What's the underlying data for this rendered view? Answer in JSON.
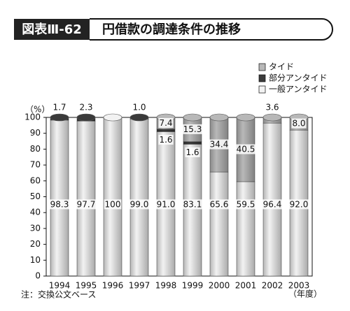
{
  "chart_data": {
    "type": "stacked-bar",
    "figure_number": "図表Ⅲ-62",
    "title": "円借款の調達条件の推移",
    "y_label": "（%）",
    "x_label": "（年度）",
    "note": "注：交換公文ベース",
    "categories": [
      "1994",
      "1995",
      "1996",
      "1997",
      "1998",
      "1999",
      "2000",
      "2001",
      "2002",
      "2003"
    ],
    "series": [
      {
        "name": "一般アンタイド",
        "color": "#f2f2f2",
        "values": [
          98.3,
          97.7,
          100,
          99.0,
          91.0,
          83.1,
          65.6,
          59.5,
          96.4,
          92.0
        ],
        "value_labels": [
          "98.3",
          "97.7",
          "100",
          "99.0",
          "91.0",
          "83.1",
          "65.6",
          "59.5",
          "96.4",
          "92.0"
        ]
      },
      {
        "name": "部分アンタイド",
        "color": "#3a3a3a",
        "values": [
          1.7,
          2.3,
          0,
          1.0,
          1.6,
          1.6,
          0,
          0,
          0,
          0
        ],
        "value_labels": [
          "1.7",
          "2.3",
          null,
          "1.0",
          "1.6",
          "1.6",
          null,
          null,
          null,
          null
        ]
      },
      {
        "name": "タイド",
        "color": "#b8b8b8",
        "values": [
          0,
          0,
          0,
          0,
          7.4,
          15.3,
          34.4,
          40.5,
          3.6,
          8.0
        ],
        "value_labels": [
          null,
          null,
          null,
          null,
          "7.4",
          "15.3",
          "34.4",
          "40.5",
          "3.6",
          "8.0"
        ]
      }
    ],
    "ylim": [
      0,
      100
    ],
    "yticks": [
      0,
      10,
      20,
      30,
      40,
      50,
      60,
      70,
      80,
      90,
      100
    ]
  }
}
